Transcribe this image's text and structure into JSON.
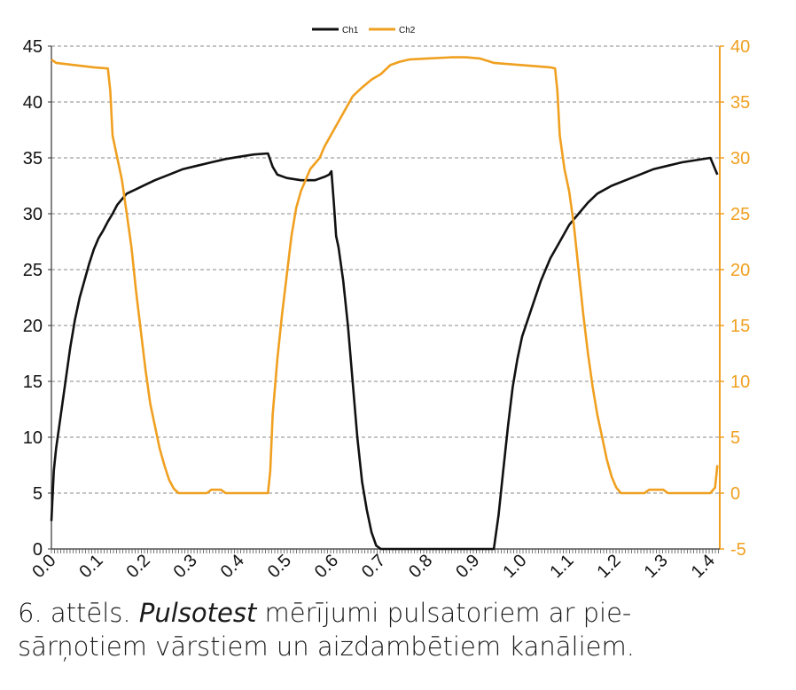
{
  "chart_data": {
    "type": "line",
    "legend": {
      "position": "top-center",
      "entries": [
        "Ch1",
        "Ch2"
      ]
    },
    "x_ticks": [
      "0.0",
      "0.1",
      "0.2",
      "0.3",
      "0.4",
      "0.5",
      "0.6",
      "0.7",
      "0.8",
      "0.9",
      "1.0",
      "1.1",
      "1.2",
      "1.3",
      "1.4"
    ],
    "xlim": [
      0,
      1.42
    ],
    "y_left": {
      "ticks": [
        "0",
        "5",
        "10",
        "15",
        "20",
        "25",
        "30",
        "35",
        "40",
        "45"
      ],
      "lim": [
        0,
        45
      ]
    },
    "y_right": {
      "ticks": [
        "-5",
        "0",
        "5",
        "10",
        "15",
        "20",
        "25",
        "30",
        "35",
        "40"
      ],
      "lim": [
        -5,
        40
      ]
    },
    "grid": "horizontal dashed",
    "series": [
      {
        "name": "Ch1",
        "color": "#111111",
        "axis": "left",
        "points": [
          [
            0.0,
            2.5
          ],
          [
            0.005,
            7
          ],
          [
            0.01,
            9
          ],
          [
            0.02,
            12
          ],
          [
            0.03,
            15
          ],
          [
            0.04,
            18
          ],
          [
            0.05,
            20.5
          ],
          [
            0.06,
            22.5
          ],
          [
            0.07,
            24
          ],
          [
            0.08,
            25.5
          ],
          [
            0.09,
            26.8
          ],
          [
            0.1,
            27.8
          ],
          [
            0.11,
            28.5
          ],
          [
            0.12,
            29.3
          ],
          [
            0.13,
            30
          ],
          [
            0.14,
            30.8
          ],
          [
            0.15,
            31.3
          ],
          [
            0.16,
            31.8
          ],
          [
            0.18,
            32.2
          ],
          [
            0.2,
            32.6
          ],
          [
            0.22,
            33
          ],
          [
            0.25,
            33.5
          ],
          [
            0.28,
            34
          ],
          [
            0.31,
            34.3
          ],
          [
            0.34,
            34.6
          ],
          [
            0.37,
            34.9
          ],
          [
            0.4,
            35.1
          ],
          [
            0.43,
            35.3
          ],
          [
            0.46,
            35.4
          ],
          [
            0.47,
            34.2
          ],
          [
            0.48,
            33.5
          ],
          [
            0.5,
            33.2
          ],
          [
            0.53,
            33
          ],
          [
            0.56,
            33
          ],
          [
            0.58,
            33.3
          ],
          [
            0.59,
            33.5
          ],
          [
            0.595,
            33.8
          ],
          [
            0.6,
            31
          ],
          [
            0.605,
            28
          ],
          [
            0.61,
            27
          ],
          [
            0.62,
            24
          ],
          [
            0.63,
            20
          ],
          [
            0.64,
            15
          ],
          [
            0.65,
            10
          ],
          [
            0.66,
            6
          ],
          [
            0.67,
            3.5
          ],
          [
            0.68,
            1.5
          ],
          [
            0.69,
            0.3
          ],
          [
            0.7,
            0
          ],
          [
            0.8,
            0
          ],
          [
            0.9,
            0
          ],
          [
            0.94,
            0
          ],
          [
            0.95,
            3
          ],
          [
            0.96,
            7
          ],
          [
            0.97,
            11
          ],
          [
            0.98,
            14.5
          ],
          [
            0.99,
            17
          ],
          [
            1.0,
            19
          ],
          [
            1.02,
            21.5
          ],
          [
            1.04,
            24
          ],
          [
            1.06,
            26
          ],
          [
            1.08,
            27.5
          ],
          [
            1.1,
            29
          ],
          [
            1.12,
            30
          ],
          [
            1.14,
            31
          ],
          [
            1.16,
            31.8
          ],
          [
            1.19,
            32.5
          ],
          [
            1.22,
            33
          ],
          [
            1.25,
            33.5
          ],
          [
            1.28,
            34
          ],
          [
            1.31,
            34.3
          ],
          [
            1.34,
            34.6
          ],
          [
            1.37,
            34.8
          ],
          [
            1.4,
            35
          ],
          [
            1.41,
            34
          ],
          [
            1.415,
            33.5
          ]
        ]
      },
      {
        "name": "Ch2",
        "color": "#f0a020",
        "axis": "right",
        "points": [
          [
            0.0,
            38.8
          ],
          [
            0.01,
            38.5
          ],
          [
            0.05,
            38.3
          ],
          [
            0.09,
            38.1
          ],
          [
            0.12,
            38
          ],
          [
            0.125,
            36
          ],
          [
            0.13,
            32
          ],
          [
            0.14,
            30
          ],
          [
            0.15,
            28
          ],
          [
            0.16,
            25
          ],
          [
            0.17,
            22
          ],
          [
            0.18,
            18
          ],
          [
            0.19,
            14.5
          ],
          [
            0.2,
            11
          ],
          [
            0.21,
            8
          ],
          [
            0.22,
            6
          ],
          [
            0.23,
            4
          ],
          [
            0.24,
            2.5
          ],
          [
            0.25,
            1.2
          ],
          [
            0.26,
            0.4
          ],
          [
            0.27,
            0
          ],
          [
            0.33,
            0
          ],
          [
            0.34,
            0.3
          ],
          [
            0.36,
            0.3
          ],
          [
            0.37,
            0
          ],
          [
            0.46,
            0
          ],
          [
            0.465,
            2
          ],
          [
            0.47,
            7
          ],
          [
            0.48,
            12
          ],
          [
            0.49,
            16
          ],
          [
            0.5,
            19.5
          ],
          [
            0.51,
            23
          ],
          [
            0.52,
            25.5
          ],
          [
            0.53,
            27
          ],
          [
            0.54,
            28
          ],
          [
            0.55,
            29
          ],
          [
            0.57,
            30
          ],
          [
            0.58,
            31
          ],
          [
            0.6,
            32.5
          ],
          [
            0.62,
            34
          ],
          [
            0.64,
            35.5
          ],
          [
            0.66,
            36.3
          ],
          [
            0.68,
            37
          ],
          [
            0.7,
            37.5
          ],
          [
            0.72,
            38.3
          ],
          [
            0.74,
            38.6
          ],
          [
            0.76,
            38.8
          ],
          [
            0.8,
            38.9
          ],
          [
            0.85,
            39
          ],
          [
            0.88,
            39
          ],
          [
            0.91,
            38.9
          ],
          [
            0.94,
            38.5
          ],
          [
            0.97,
            38.4
          ],
          [
            1.0,
            38.3
          ],
          [
            1.03,
            38.2
          ],
          [
            1.06,
            38.1
          ],
          [
            1.07,
            38
          ],
          [
            1.075,
            36
          ],
          [
            1.08,
            32
          ],
          [
            1.09,
            29
          ],
          [
            1.1,
            27
          ],
          [
            1.11,
            24
          ],
          [
            1.12,
            20
          ],
          [
            1.13,
            16
          ],
          [
            1.14,
            12.5
          ],
          [
            1.15,
            9.5
          ],
          [
            1.16,
            7
          ],
          [
            1.17,
            5
          ],
          [
            1.18,
            3
          ],
          [
            1.19,
            1.5
          ],
          [
            1.2,
            0.5
          ],
          [
            1.21,
            0
          ],
          [
            1.26,
            0
          ],
          [
            1.27,
            0.3
          ],
          [
            1.3,
            0.3
          ],
          [
            1.31,
            0
          ],
          [
            1.4,
            0
          ],
          [
            1.41,
            0.5
          ],
          [
            1.415,
            2.5
          ]
        ]
      }
    ]
  },
  "caption": {
    "number": "6. attēls.",
    "italic": "Pulsotest",
    "rest_line1": "mērījumi pulsatoriem ar pie-",
    "line2": "sārņotiem vārstiem un aizdambētiem kanāliem."
  }
}
